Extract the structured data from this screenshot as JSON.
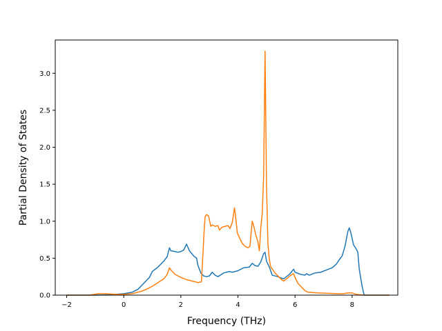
{
  "chart_data": {
    "type": "line",
    "title": "",
    "xlabel": "Frequency (THz)",
    "ylabel": "Partial Density of States",
    "xlim": [
      -2.4,
      9.6
    ],
    "ylim": [
      0,
      3.45
    ],
    "xticks": [
      -2,
      0,
      2,
      4,
      6,
      8
    ],
    "xtick_labels": [
      "−2",
      "0",
      "2",
      "4",
      "6",
      "8"
    ],
    "yticks": [
      0,
      0.5,
      1.0,
      1.5,
      2.0,
      2.5,
      3.0
    ],
    "ytick_labels": [
      "0.0",
      "0.5",
      "1.0",
      "1.5",
      "2.0",
      "2.5",
      "3.0"
    ],
    "grid": false,
    "legend": false,
    "series": [
      {
        "color": "#1f77b4",
        "points": [
          [
            -2.0,
            0.0
          ],
          [
            -1.0,
            0.0
          ],
          [
            -0.5,
            0.005
          ],
          [
            0.0,
            0.02
          ],
          [
            0.3,
            0.04
          ],
          [
            0.5,
            0.08
          ],
          [
            0.7,
            0.16
          ],
          [
            0.9,
            0.24
          ],
          [
            1.0,
            0.32
          ],
          [
            1.2,
            0.38
          ],
          [
            1.4,
            0.46
          ],
          [
            1.52,
            0.52
          ],
          [
            1.6,
            0.64
          ],
          [
            1.65,
            0.6
          ],
          [
            1.8,
            0.59
          ],
          [
            1.9,
            0.58
          ],
          [
            2.0,
            0.59
          ],
          [
            2.1,
            0.61
          ],
          [
            2.2,
            0.69
          ],
          [
            2.3,
            0.6
          ],
          [
            2.45,
            0.53
          ],
          [
            2.55,
            0.5
          ],
          [
            2.6,
            0.4
          ],
          [
            2.7,
            0.3
          ],
          [
            2.8,
            0.26
          ],
          [
            2.9,
            0.25
          ],
          [
            3.0,
            0.26
          ],
          [
            3.1,
            0.31
          ],
          [
            3.2,
            0.27
          ],
          [
            3.3,
            0.25
          ],
          [
            3.5,
            0.3
          ],
          [
            3.6,
            0.31
          ],
          [
            3.7,
            0.32
          ],
          [
            3.8,
            0.31
          ],
          [
            4.0,
            0.33
          ],
          [
            4.2,
            0.37
          ],
          [
            4.4,
            0.38
          ],
          [
            4.5,
            0.43
          ],
          [
            4.6,
            0.4
          ],
          [
            4.7,
            0.39
          ],
          [
            4.8,
            0.45
          ],
          [
            4.9,
            0.56
          ],
          [
            4.95,
            0.58
          ],
          [
            5.0,
            0.46
          ],
          [
            5.1,
            0.38
          ],
          [
            5.2,
            0.27
          ],
          [
            5.4,
            0.25
          ],
          [
            5.6,
            0.22
          ],
          [
            5.7,
            0.25
          ],
          [
            5.8,
            0.28
          ],
          [
            5.95,
            0.35
          ],
          [
            6.0,
            0.31
          ],
          [
            6.2,
            0.28
          ],
          [
            6.35,
            0.27
          ],
          [
            6.4,
            0.29
          ],
          [
            6.5,
            0.27
          ],
          [
            6.7,
            0.3
          ],
          [
            6.9,
            0.31
          ],
          [
            7.1,
            0.34
          ],
          [
            7.3,
            0.37
          ],
          [
            7.45,
            0.42
          ],
          [
            7.55,
            0.48
          ],
          [
            7.65,
            0.53
          ],
          [
            7.75,
            0.66
          ],
          [
            7.85,
            0.86
          ],
          [
            7.9,
            0.91
          ],
          [
            7.95,
            0.85
          ],
          [
            8.05,
            0.68
          ],
          [
            8.15,
            0.62
          ],
          [
            8.2,
            0.58
          ],
          [
            8.25,
            0.35
          ],
          [
            8.35,
            0.12
          ],
          [
            8.42,
            0.0
          ],
          [
            9.3,
            0.0
          ]
        ]
      },
      {
        "color": "#ff7f0e",
        "points": [
          [
            -2.0,
            0.0
          ],
          [
            -1.2,
            0.0
          ],
          [
            -0.9,
            0.02
          ],
          [
            -0.6,
            0.02
          ],
          [
            -0.3,
            0.01
          ],
          [
            0.0,
            0.01
          ],
          [
            0.3,
            0.02
          ],
          [
            0.6,
            0.05
          ],
          [
            0.8,
            0.08
          ],
          [
            1.0,
            0.12
          ],
          [
            1.2,
            0.17
          ],
          [
            1.4,
            0.22
          ],
          [
            1.52,
            0.28
          ],
          [
            1.6,
            0.37
          ],
          [
            1.65,
            0.34
          ],
          [
            1.8,
            0.28
          ],
          [
            2.0,
            0.24
          ],
          [
            2.2,
            0.21
          ],
          [
            2.4,
            0.19
          ],
          [
            2.6,
            0.17
          ],
          [
            2.72,
            0.18
          ],
          [
            2.78,
            0.6
          ],
          [
            2.82,
            0.9
          ],
          [
            2.85,
            1.06
          ],
          [
            2.9,
            1.09
          ],
          [
            2.97,
            1.07
          ],
          [
            3.05,
            0.93
          ],
          [
            3.1,
            0.95
          ],
          [
            3.2,
            0.93
          ],
          [
            3.3,
            0.94
          ],
          [
            3.35,
            0.88
          ],
          [
            3.45,
            0.92
          ],
          [
            3.55,
            0.93
          ],
          [
            3.65,
            0.94
          ],
          [
            3.72,
            0.9
          ],
          [
            3.8,
            0.98
          ],
          [
            3.88,
            1.18
          ],
          [
            3.92,
            1.05
          ],
          [
            3.98,
            0.84
          ],
          [
            4.05,
            0.78
          ],
          [
            4.15,
            0.7
          ],
          [
            4.25,
            0.66
          ],
          [
            4.35,
            0.64
          ],
          [
            4.42,
            0.66
          ],
          [
            4.5,
            1.0
          ],
          [
            4.55,
            0.94
          ],
          [
            4.62,
            0.82
          ],
          [
            4.7,
            0.72
          ],
          [
            4.75,
            0.6
          ],
          [
            4.8,
            0.9
          ],
          [
            4.85,
            1.1
          ],
          [
            4.9,
            1.6
          ],
          [
            4.95,
            3.3
          ],
          [
            5.0,
            1.5
          ],
          [
            5.05,
            0.7
          ],
          [
            5.1,
            0.48
          ],
          [
            5.15,
            0.38
          ],
          [
            5.3,
            0.3
          ],
          [
            5.5,
            0.22
          ],
          [
            5.6,
            0.19
          ],
          [
            5.7,
            0.22
          ],
          [
            5.85,
            0.27
          ],
          [
            5.95,
            0.29
          ],
          [
            6.0,
            0.24
          ],
          [
            6.1,
            0.16
          ],
          [
            6.2,
            0.12
          ],
          [
            6.35,
            0.06
          ],
          [
            6.45,
            0.04
          ],
          [
            6.8,
            0.03
          ],
          [
            7.5,
            0.02
          ],
          [
            7.7,
            0.02
          ],
          [
            7.85,
            0.03
          ],
          [
            8.0,
            0.03
          ],
          [
            8.15,
            0.01
          ],
          [
            8.4,
            0.0
          ],
          [
            9.3,
            0.0
          ]
        ]
      }
    ]
  }
}
